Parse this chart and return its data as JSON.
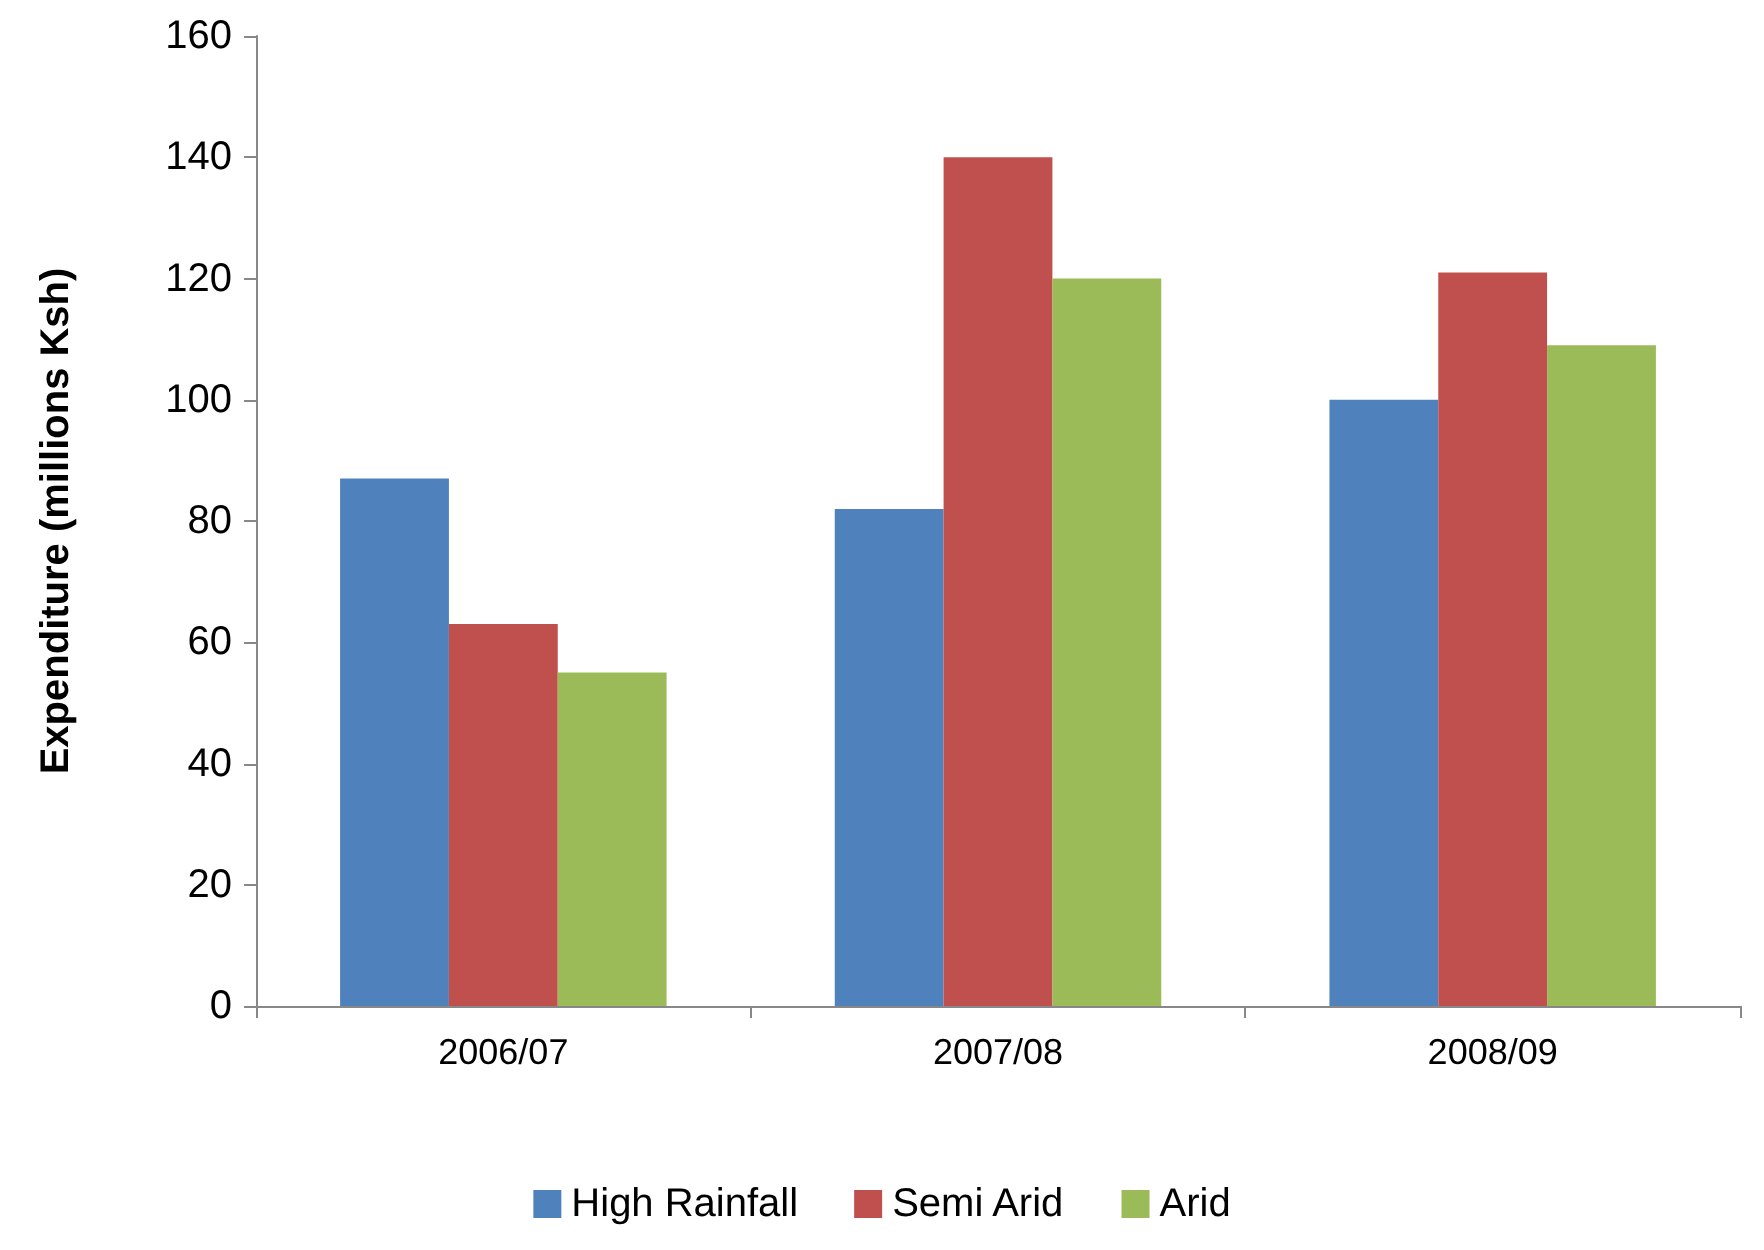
{
  "chart_data": {
    "type": "bar",
    "ylabel": "Expenditure (millions Ksh)",
    "categories": [
      "2006/07",
      "2007/08",
      "2008/09"
    ],
    "series": [
      {
        "name": "High Rainfall",
        "color": "#4f81bd",
        "values": [
          87,
          82,
          100
        ]
      },
      {
        "name": "Semi Arid",
        "color": "#c0504d",
        "values": [
          63,
          140,
          121
        ]
      },
      {
        "name": "Arid",
        "color": "#9bbb59",
        "values": [
          55,
          120,
          109
        ]
      }
    ],
    "ylim": [
      0,
      160
    ],
    "yticks": [
      0,
      20,
      40,
      60,
      80,
      100,
      120,
      140,
      160
    ],
    "grid": false,
    "legend": "bottom"
  }
}
